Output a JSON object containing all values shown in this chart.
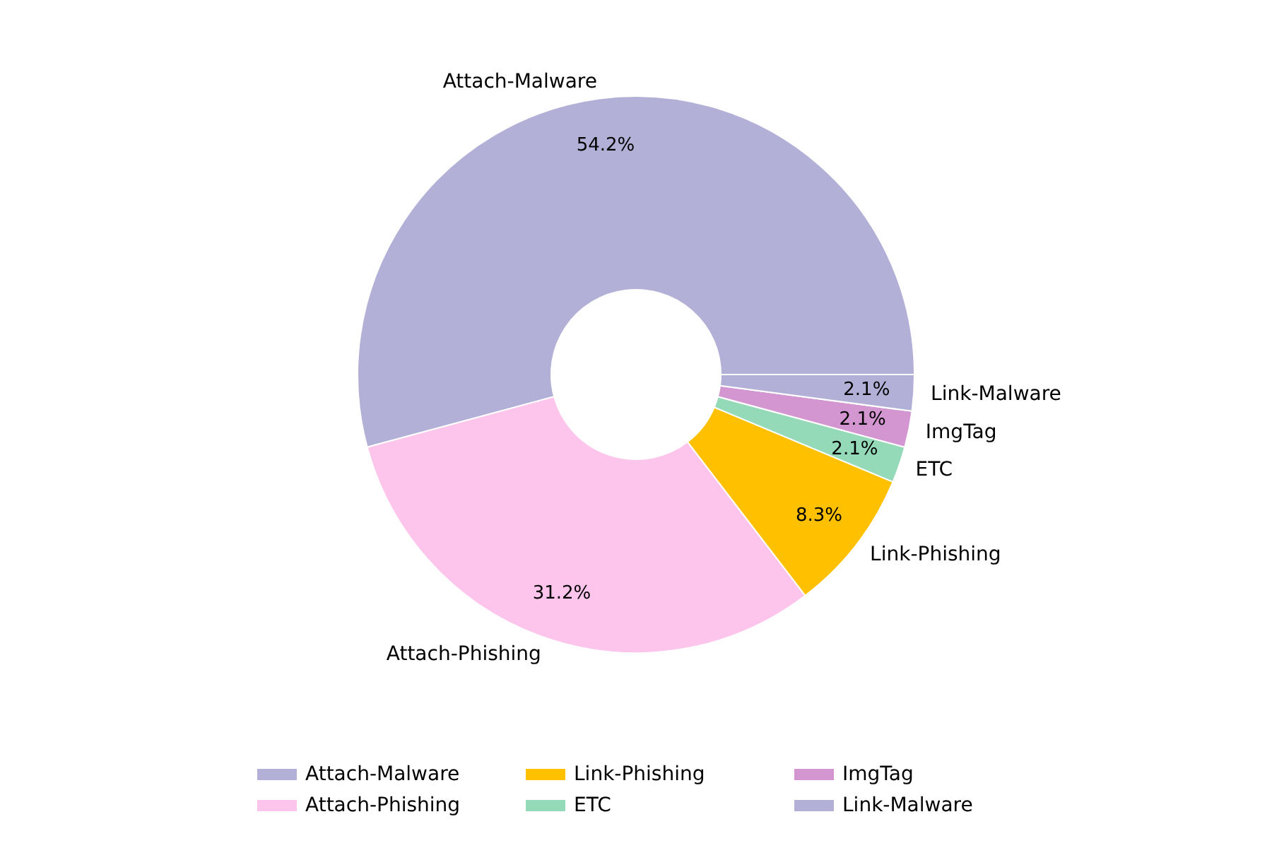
{
  "chart_data": {
    "type": "donut",
    "categories": [
      "Attach-Malware",
      "Attach-Phishing",
      "Link-Phishing",
      "ETC",
      "ImgTag",
      "Link-Malware"
    ],
    "values": [
      54.2,
      31.2,
      8.3,
      2.1,
      2.1,
      2.1
    ],
    "colors": [
      "#b3b0d7",
      "#fdc4ec",
      "#ffc000",
      "#94dab8",
      "#d396d0",
      "#b3b0d7"
    ],
    "value_labels": [
      "54.2%",
      "31.2%",
      "8.3%",
      "2.1%",
      "2.1%",
      "2.1%"
    ],
    "legend": "bottom"
  }
}
